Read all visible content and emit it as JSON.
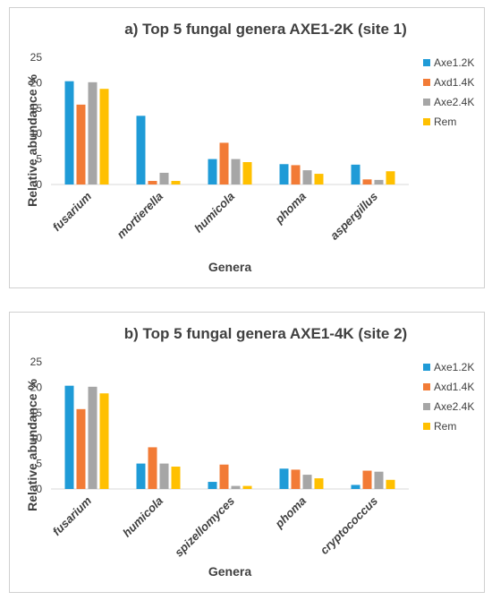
{
  "chart_data": [
    {
      "type": "bar",
      "title": "a) Top 5 fungal genera AXE1-2K (site 1)",
      "xlabel": "Genera",
      "ylabel": "Relative abundance %",
      "ylim": [
        0,
        25
      ],
      "yticks": [
        0,
        5,
        10,
        15,
        20,
        25
      ],
      "grid": false,
      "legend": "right",
      "categories": [
        "fusarium",
        "mortierella",
        "humicola",
        "phoma",
        "aspergillus"
      ],
      "series": [
        {
          "name": "Axe1.2K",
          "color": "#1f9bd7",
          "values": [
            20.3,
            13.5,
            5.0,
            4.0,
            3.9
          ]
        },
        {
          "name": "Axd1.4K",
          "color": "#f27b36",
          "values": [
            15.7,
            0.7,
            8.2,
            3.8,
            1.0
          ]
        },
        {
          "name": "Axe2.4K",
          "color": "#a6a6a6",
          "values": [
            20.1,
            2.3,
            5.0,
            2.8,
            0.9
          ]
        },
        {
          "name": "Rem",
          "color": "#ffc000",
          "values": [
            18.8,
            0.7,
            4.4,
            2.1,
            2.6
          ]
        }
      ]
    },
    {
      "type": "bar",
      "title": "b) Top 5 fungal genera AXE1-4K (site 2)",
      "xlabel": "Genera",
      "ylabel": "Relative abundance %",
      "ylim": [
        0,
        25
      ],
      "yticks": [
        0,
        5,
        10,
        15,
        20,
        25
      ],
      "grid": false,
      "legend": "right",
      "categories": [
        "fusarium",
        "humicola",
        "spizellomyces",
        "phoma",
        "cryptococcus"
      ],
      "series": [
        {
          "name": "Axe1.2K",
          "color": "#1f9bd7",
          "values": [
            20.3,
            5.0,
            1.4,
            4.0,
            0.8
          ]
        },
        {
          "name": "Axd1.4K",
          "color": "#f27b36",
          "values": [
            15.7,
            8.2,
            4.8,
            3.8,
            3.6
          ]
        },
        {
          "name": "Axe2.4K",
          "color": "#a6a6a6",
          "values": [
            20.1,
            5.0,
            0.6,
            2.8,
            3.4
          ]
        },
        {
          "name": "Rem",
          "color": "#ffc000",
          "values": [
            18.8,
            4.4,
            0.6,
            2.1,
            1.8
          ]
        }
      ]
    }
  ]
}
